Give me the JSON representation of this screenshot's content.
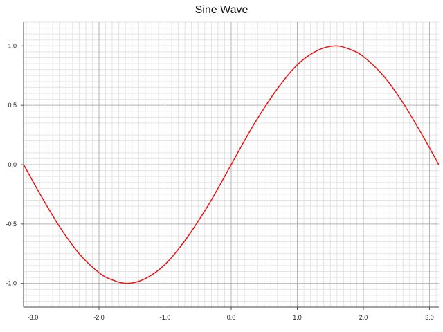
{
  "chart_data": {
    "type": "line",
    "title": "Sine Wave",
    "xlabel": "",
    "ylabel": "",
    "xlim": [
      -3.14159,
      3.14159
    ],
    "ylim": [
      -1.2,
      1.2
    ],
    "grid": true,
    "x_ticks": [
      -3.0,
      -2.0,
      -1.0,
      0.0,
      1.0,
      2.0,
      3.0
    ],
    "x_tick_labels": [
      "-3.0",
      "-2.0",
      "-1.0",
      "0.0",
      "1.0",
      "2.0",
      "3.0"
    ],
    "y_ticks": [
      -1.0,
      -0.5,
      0.0,
      0.5,
      1.0
    ],
    "y_tick_labels": [
      "-1.0",
      "-0.5",
      "0.0",
      "0.5",
      "1.0"
    ],
    "series": [
      {
        "color": "#ee1111",
        "x": [
          -3.14,
          -2.9,
          -2.6,
          -2.3,
          -2.0,
          -1.8,
          -1.57,
          -1.3,
          -1.0,
          -0.7,
          -0.4,
          -0.2,
          0.0,
          0.2,
          0.4,
          0.7,
          1.0,
          1.3,
          1.57,
          1.8,
          2.0,
          2.3,
          2.6,
          2.9,
          3.14
        ],
        "y": [
          0.0,
          -0.24,
          -0.52,
          -0.75,
          -0.91,
          -0.97,
          -1.0,
          -0.96,
          -0.84,
          -0.64,
          -0.39,
          -0.2,
          0.0,
          0.2,
          0.39,
          0.64,
          0.84,
          0.96,
          1.0,
          0.97,
          0.91,
          0.75,
          0.52,
          0.24,
          0.0
        ]
      }
    ]
  }
}
